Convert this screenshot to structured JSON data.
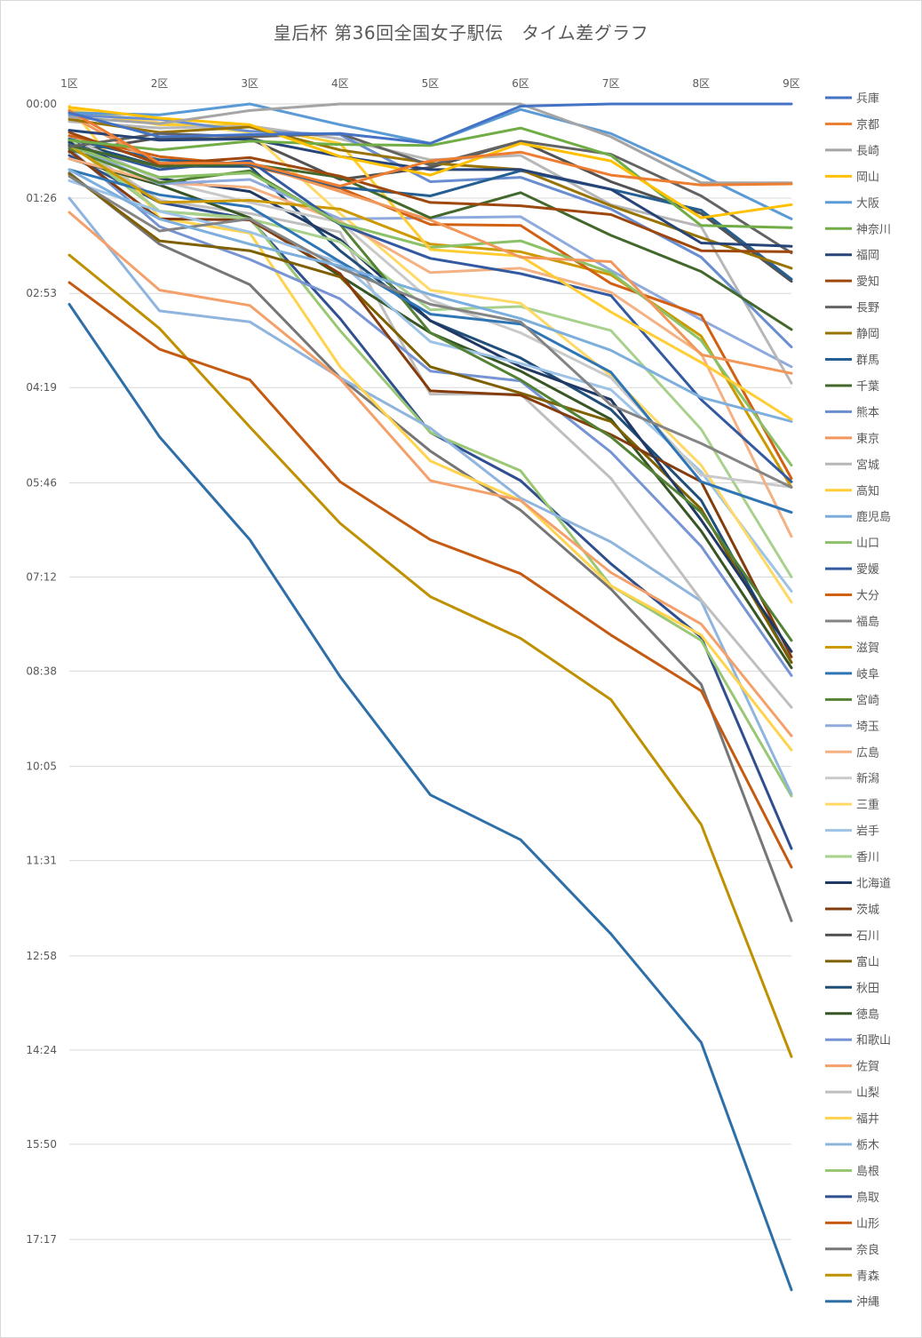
{
  "chart_data": {
    "type": "line",
    "title": "皇后杯 第36回全国女子駅伝　タイム差グラフ",
    "categories": [
      "1区",
      "2区",
      "3区",
      "4区",
      "5区",
      "6区",
      "7区",
      "8区",
      "9区"
    ],
    "y_ticks": [
      "00:00",
      "01:26",
      "02:53",
      "04:19",
      "05:46",
      "07:12",
      "08:38",
      "10:05",
      "11:31",
      "12:58",
      "14:24",
      "15:50",
      "17:17"
    ],
    "y_unit": "seconds_behind_leader",
    "y_range": [
      0,
      1080
    ],
    "y_reversed": true,
    "grid": true,
    "legend_position": "right",
    "series": [
      {
        "name": "兵庫",
        "color": "#4472c4",
        "values": [
          8,
          30,
          28,
          27,
          36,
          2,
          0,
          0,
          0
        ]
      },
      {
        "name": "京都",
        "color": "#ed7d31",
        "values": [
          6,
          54,
          54,
          75,
          52,
          44,
          65,
          74,
          73
        ]
      },
      {
        "name": "長崎",
        "color": "#a5a5a5",
        "values": [
          12,
          18,
          6,
          0,
          0,
          0,
          30,
          72,
          72
        ]
      },
      {
        "name": "岡山",
        "color": "#ffc000",
        "values": [
          3,
          13,
          19,
          48,
          65,
          36,
          52,
          104,
          92
        ]
      },
      {
        "name": "大阪",
        "color": "#5b9bd5",
        "values": [
          8,
          10,
          0,
          19,
          36,
          5,
          27,
          65,
          105
        ]
      },
      {
        "name": "神奈川",
        "color": "#70ad47",
        "values": [
          33,
          42,
          34,
          37,
          38,
          22,
          47,
          111,
          113
        ]
      },
      {
        "name": "福岡",
        "color": "#264478",
        "values": [
          24,
          33,
          32,
          48,
          60,
          60,
          78,
          127,
          130
        ]
      },
      {
        "name": "愛知",
        "color": "#9e480e",
        "values": [
          26,
          55,
          49,
          66,
          90,
          93,
          101,
          134,
          135
        ]
      },
      {
        "name": "長野",
        "color": "#636363",
        "values": [
          39,
          27,
          30,
          27,
          56,
          34,
          46,
          84,
          136
        ]
      },
      {
        "name": "静岡",
        "color": "#997300",
        "values": [
          14,
          26,
          21,
          42,
          54,
          60,
          93,
          122,
          150
        ]
      },
      {
        "name": "群馬",
        "color": "#255e91",
        "values": [
          32,
          51,
          55,
          76,
          84,
          61,
          78,
          97,
          160
        ]
      },
      {
        "name": "千葉",
        "color": "#43682b",
        "values": [
          38,
          57,
          55,
          67,
          104,
          81,
          120,
          153,
          206
        ]
      },
      {
        "name": "熊本",
        "color": "#698ed0",
        "values": [
          10,
          14,
          25,
          28,
          71,
          67,
          96,
          140,
          222
        ]
      },
      {
        "name": "東京",
        "color": "#f1975a",
        "values": [
          10,
          56,
          54,
          80,
          106,
          140,
          144,
          229,
          246
        ]
      },
      {
        "name": "宮城",
        "color": "#b7b7b7",
        "values": [
          16,
          22,
          20,
          32,
          51,
          47,
          92,
          112,
          255
        ]
      },
      {
        "name": "高知",
        "color": "#ffcd33",
        "values": [
          6,
          19,
          20,
          36,
          133,
          139,
          190,
          236,
          288
        ]
      },
      {
        "name": "鹿児島",
        "color": "#7cafdd",
        "values": [
          60,
          105,
          128,
          148,
          174,
          196,
          225,
          268,
          290
        ]
      },
      {
        "name": "山口",
        "color": "#8cc168",
        "values": [
          38,
          67,
          63,
          109,
          131,
          125,
          154,
          216,
          330
        ]
      },
      {
        "name": "愛媛",
        "color": "#335aa1",
        "values": [
          37,
          60,
          52,
          110,
          141,
          155,
          175,
          270,
          345
        ]
      },
      {
        "name": "大分",
        "color": "#d26012",
        "values": [
          29,
          48,
          56,
          77,
          110,
          111,
          164,
          193,
          342
        ]
      },
      {
        "name": "福島",
        "color": "#848484",
        "values": [
          66,
          116,
          105,
          150,
          183,
          199,
          275,
          310,
          350
        ]
      },
      {
        "name": "滋賀",
        "color": "#cc9a00",
        "values": [
          38,
          90,
          88,
          96,
          128,
          135,
          156,
          212,
          350
        ]
      },
      {
        "name": "岐阜",
        "color": "#2e75b6",
        "values": [
          60,
          83,
          94,
          144,
          192,
          201,
          245,
          345,
          373
        ]
      },
      {
        "name": "宮崎",
        "color": "#548235",
        "values": [
          41,
          72,
          61,
          110,
          209,
          252,
          304,
          373,
          490
        ]
      },
      {
        "name": "埼玉",
        "color": "#8faadc",
        "values": [
          37,
          73,
          69,
          105,
          104,
          103,
          152,
          197,
          240
        ]
      },
      {
        "name": "広島",
        "color": "#f4b183",
        "values": [
          50,
          72,
          76,
          107,
          154,
          150,
          172,
          228,
          395
        ]
      },
      {
        "name": "新潟",
        "color": "#c9c9c9",
        "values": [
          30,
          70,
          90,
          108,
          179,
          209,
          250,
          339,
          350
        ]
      },
      {
        "name": "三重",
        "color": "#ffd966",
        "values": [
          5,
          17,
          26,
          100,
          170,
          182,
          248,
          330,
          455
        ]
      },
      {
        "name": "岩手",
        "color": "#9dc3e6",
        "values": [
          70,
          98,
          117,
          145,
          217,
          237,
          261,
          336,
          445
        ]
      },
      {
        "name": "香川",
        "color": "#a9d18e",
        "values": [
          31,
          98,
          105,
          126,
          188,
          185,
          207,
          297,
          432
        ]
      },
      {
        "name": "北海道",
        "color": "#203864",
        "values": [
          35,
          68,
          80,
          124,
          198,
          240,
          270,
          380,
          500
        ]
      },
      {
        "name": "茨城",
        "color": "#843c0c",
        "values": [
          43,
          105,
          106,
          155,
          262,
          266,
          302,
          345,
          505
        ]
      },
      {
        "name": "石川",
        "color": "#525252",
        "values": [
          44,
          31,
          32,
          69,
          58,
          34,
          71,
          100,
          162
        ]
      },
      {
        "name": "富山",
        "color": "#7f6000",
        "values": [
          64,
          125,
          134,
          158,
          240,
          264,
          290,
          370,
          510
        ]
      },
      {
        "name": "秋田",
        "color": "#1f4e79",
        "values": [
          34,
          57,
          57,
          134,
          198,
          232,
          279,
          362,
          510
        ]
      },
      {
        "name": "徳島",
        "color": "#375623",
        "values": [
          50,
          74,
          104,
          157,
          209,
          244,
          288,
          390,
          515
        ]
      },
      {
        "name": "和歌山",
        "color": "#7694d4",
        "values": [
          41,
          112,
          142,
          178,
          244,
          253,
          318,
          404,
          522
        ]
      },
      {
        "name": "佐賀",
        "color": "#f4a06b",
        "values": [
          99,
          170,
          184,
          251,
          344,
          362,
          428,
          475,
          577
        ]
      },
      {
        "name": "山梨",
        "color": "#bfbfbf",
        "values": [
          34,
          88,
          100,
          117,
          265,
          265,
          342,
          453,
          551
        ]
      },
      {
        "name": "福井",
        "color": "#ffd34d",
        "values": [
          2,
          104,
          118,
          240,
          326,
          362,
          440,
          485,
          590
        ]
      },
      {
        "name": "栃木",
        "color": "#8fb5de",
        "values": [
          86,
          189,
          199,
          250,
          296,
          360,
          400,
          454,
          630
        ]
      },
      {
        "name": "島根",
        "color": "#9ac774",
        "values": [
          36,
          98,
          104,
          207,
          300,
          335,
          440,
          490,
          632
        ]
      },
      {
        "name": "鳥取",
        "color": "#2f4f8f",
        "values": [
          47,
          90,
          105,
          196,
          300,
          344,
          420,
          487,
          680
        ]
      },
      {
        "name": "山形",
        "color": "#c55a11",
        "values": [
          163,
          224,
          252,
          345,
          398,
          429,
          485,
          536,
          697
        ]
      },
      {
        "name": "奈良",
        "color": "#767676",
        "values": [
          63,
          128,
          165,
          250,
          317,
          371,
          443,
          530,
          746
        ]
      },
      {
        "name": "青森",
        "color": "#bf9000",
        "values": [
          138,
          205,
          295,
          383,
          450,
          488,
          544,
          658,
          870
        ]
      },
      {
        "name": "沖縄",
        "color": "#2e6fa7",
        "values": [
          183,
          304,
          398,
          523,
          631,
          672,
          758,
          857,
          1083
        ]
      }
    ]
  }
}
